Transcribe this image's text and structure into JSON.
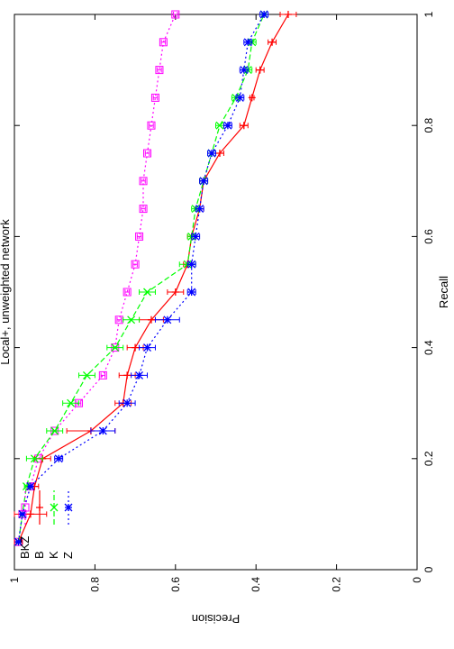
{
  "chart_data": {
    "type": "line",
    "title": "Local+, unweighted network",
    "xlabel": "Recall",
    "ylabel": "Precision",
    "xlim": [
      0,
      1
    ],
    "ylim": [
      0,
      1
    ],
    "xticks": [
      "0",
      "0.2",
      "0.4",
      "0.6",
      "0.8",
      "1"
    ],
    "yticks": [
      "0",
      "0.2",
      "0.4",
      "0.6",
      "0.8",
      "1"
    ],
    "orientation": "rotated 90 degrees counter-clockwise",
    "grid": false,
    "legend_position": "top-left",
    "series": [
      {
        "name": "BKZ",
        "color": "#ff00ff",
        "line_style": "dotted",
        "marker": "square",
        "x": [
          0.05,
          0.1,
          0.15,
          0.2,
          0.25,
          0.3,
          0.35,
          0.4,
          0.45,
          0.5,
          0.55,
          0.6,
          0.65,
          0.7,
          0.75,
          0.8,
          0.85,
          0.9,
          0.95,
          1.0
        ],
        "y": [
          0.99,
          0.98,
          0.96,
          0.94,
          0.9,
          0.84,
          0.78,
          0.75,
          0.74,
          0.72,
          0.7,
          0.69,
          0.68,
          0.68,
          0.67,
          0.66,
          0.65,
          0.64,
          0.63,
          0.6
        ],
        "err": [
          0.005,
          0.005,
          0.005,
          0.005,
          0.005,
          0.005,
          0.005,
          0.005,
          0.005,
          0.005,
          0.005,
          0.005,
          0.005,
          0.005,
          0.005,
          0.005,
          0.005,
          0.005,
          0.005,
          0.005
        ]
      },
      {
        "name": "B",
        "color": "#ff0000",
        "line_style": "solid",
        "marker": "plus",
        "x": [
          0.05,
          0.1,
          0.15,
          0.2,
          0.25,
          0.3,
          0.35,
          0.4,
          0.45,
          0.5,
          0.55,
          0.6,
          0.65,
          0.7,
          0.75,
          0.8,
          0.85,
          0.9,
          0.95,
          1.0
        ],
        "y": [
          0.99,
          0.96,
          0.95,
          0.93,
          0.81,
          0.73,
          0.72,
          0.7,
          0.66,
          0.6,
          0.57,
          0.56,
          0.54,
          0.53,
          0.49,
          0.43,
          0.41,
          0.39,
          0.36,
          0.32
        ],
        "err": [
          0.01,
          0.04,
          0.01,
          0.02,
          0.06,
          0.02,
          0.02,
          0.02,
          0.03,
          0.02,
          0.01,
          0.01,
          0.01,
          0.01,
          0.01,
          0.01,
          0.005,
          0.01,
          0.01,
          0.02
        ]
      },
      {
        "name": "K",
        "color": "#00ff00",
        "line_style": "dashed",
        "marker": "cross",
        "x": [
          0.05,
          0.1,
          0.15,
          0.2,
          0.25,
          0.3,
          0.35,
          0.4,
          0.45,
          0.5,
          0.55,
          0.6,
          0.65,
          0.7,
          0.75,
          0.8,
          0.85,
          0.9,
          0.95,
          1.0
        ],
        "y": [
          0.99,
          0.98,
          0.97,
          0.95,
          0.9,
          0.86,
          0.82,
          0.75,
          0.71,
          0.67,
          0.57,
          0.56,
          0.55,
          0.53,
          0.51,
          0.49,
          0.45,
          0.42,
          0.41,
          0.38
        ],
        "err": [
          0.005,
          0.005,
          0.005,
          0.02,
          0.02,
          0.02,
          0.02,
          0.02,
          0.02,
          0.02,
          0.02,
          0.01,
          0.01,
          0.01,
          0.01,
          0.01,
          0.01,
          0.01,
          0.01,
          0.005
        ]
      },
      {
        "name": "Z",
        "color": "#0000ff",
        "line_style": "dotted",
        "marker": "star",
        "x": [
          0.05,
          0.1,
          0.15,
          0.2,
          0.25,
          0.3,
          0.35,
          0.4,
          0.45,
          0.5,
          0.55,
          0.6,
          0.65,
          0.7,
          0.75,
          0.8,
          0.85,
          0.9,
          0.95,
          1.0
        ],
        "y": [
          0.99,
          0.98,
          0.96,
          0.89,
          0.78,
          0.72,
          0.69,
          0.67,
          0.62,
          0.56,
          0.56,
          0.55,
          0.54,
          0.53,
          0.51,
          0.47,
          0.44,
          0.43,
          0.42,
          0.38
        ],
        "err": [
          0.005,
          0.005,
          0.005,
          0.01,
          0.03,
          0.02,
          0.02,
          0.02,
          0.03,
          0.01,
          0.01,
          0.01,
          0.01,
          0.01,
          0.01,
          0.01,
          0.01,
          0.01,
          0.01,
          0.01
        ]
      }
    ]
  }
}
